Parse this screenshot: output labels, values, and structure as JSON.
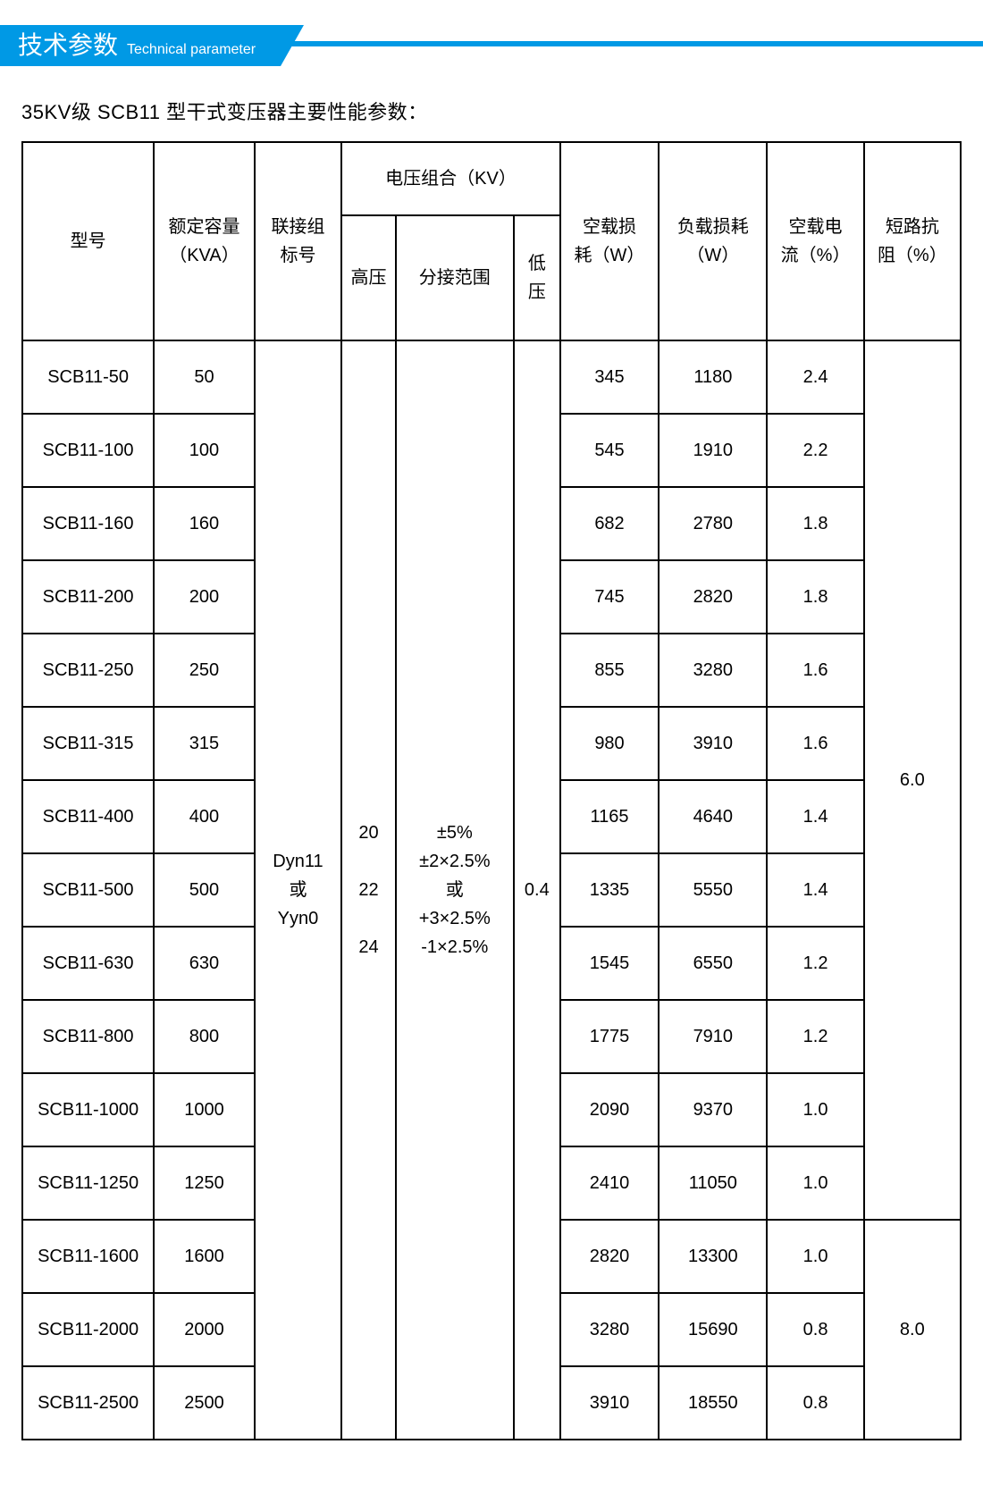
{
  "colors": {
    "accent": "#0099e5",
    "text": "#000000",
    "background": "#ffffff",
    "border": "#000000"
  },
  "header": {
    "title_zh": "技术参数",
    "title_en": "Technical parameter"
  },
  "subtitle": "35KV级 SCB11 型干式变压器主要性能参数：",
  "table": {
    "columns": {
      "model": "型号",
      "rated_capacity": "额定容量\n（KVA）",
      "connection_symbol": "联接组\n标号",
      "voltage_group": "电压组合（KV）",
      "hv": "高压",
      "tap_range": "分接范围",
      "lv": "低\n压",
      "no_load_loss": "空载损\n耗（W）",
      "load_loss": "负载损耗\n（W）",
      "no_load_current": "空载电\n流（%）",
      "short_circuit_impedance": "短路抗\n阻（%）"
    },
    "shared": {
      "connection_symbol": "Dyn11\n或\nYyn0",
      "hv": "20\n\n22\n\n24",
      "tap_range": "±5%\n±2×2.5%\n或\n+3×2.5%\n-1×2.5%",
      "lv": "0.4",
      "impedance_a": "6.0",
      "impedance_b": "8.0"
    },
    "rows": [
      {
        "model": "SCB11-50",
        "kva": "50",
        "nlloss": "345",
        "lloss": "1180",
        "nlc": "2.4"
      },
      {
        "model": "SCB11-100",
        "kva": "100",
        "nlloss": "545",
        "lloss": "1910",
        "nlc": "2.2"
      },
      {
        "model": "SCB11-160",
        "kva": "160",
        "nlloss": "682",
        "lloss": "2780",
        "nlc": "1.8"
      },
      {
        "model": "SCB11-200",
        "kva": "200",
        "nlloss": "745",
        "lloss": "2820",
        "nlc": "1.8"
      },
      {
        "model": "SCB11-250",
        "kva": "250",
        "nlloss": "855",
        "lloss": "3280",
        "nlc": "1.6"
      },
      {
        "model": "SCB11-315",
        "kva": "315",
        "nlloss": "980",
        "lloss": "3910",
        "nlc": "1.6"
      },
      {
        "model": "SCB11-400",
        "kva": "400",
        "nlloss": "1165",
        "lloss": "4640",
        "nlc": "1.4"
      },
      {
        "model": "SCB11-500",
        "kva": "500",
        "nlloss": "1335",
        "lloss": "5550",
        "nlc": "1.4"
      },
      {
        "model": "SCB11-630",
        "kva": "630",
        "nlloss": "1545",
        "lloss": "6550",
        "nlc": "1.2"
      },
      {
        "model": "SCB11-800",
        "kva": "800",
        "nlloss": "1775",
        "lloss": "7910",
        "nlc": "1.2"
      },
      {
        "model": "SCB11-1000",
        "kva": "1000",
        "nlloss": "2090",
        "lloss": "9370",
        "nlc": "1.0"
      },
      {
        "model": "SCB11-1250",
        "kva": "1250",
        "nlloss": "2410",
        "lloss": "11050",
        "nlc": "1.0"
      },
      {
        "model": "SCB11-1600",
        "kva": "1600",
        "nlloss": "2820",
        "lloss": "13300",
        "nlc": "1.0"
      },
      {
        "model": "SCB11-2000",
        "kva": "2000",
        "nlloss": "3280",
        "lloss": "15690",
        "nlc": "0.8"
      },
      {
        "model": "SCB11-2500",
        "kva": "2500",
        "nlloss": "3910",
        "lloss": "18550",
        "nlc": "0.8"
      }
    ]
  }
}
